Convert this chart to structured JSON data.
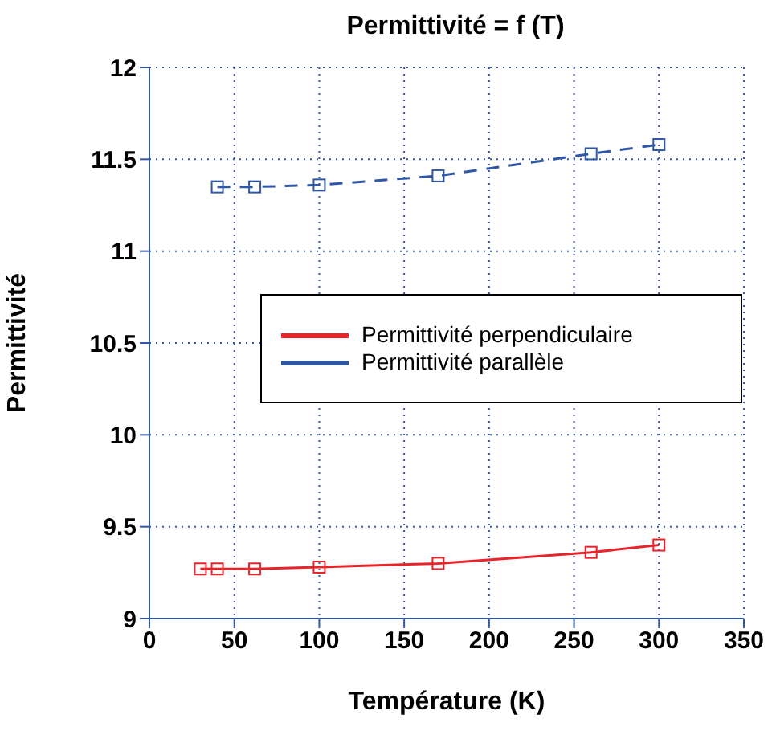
{
  "chart_data": {
    "type": "line",
    "title": "Permittivité = f (T)",
    "xlabel": "Température (K)",
    "ylabel": "Permittivité",
    "xlim": [
      0,
      350
    ],
    "xticks": [
      0,
      50,
      100,
      150,
      200,
      250,
      300,
      350
    ],
    "ylim": [
      9,
      12
    ],
    "yticks": [
      9,
      9.5,
      10,
      10.5,
      11,
      11.5,
      12
    ],
    "grid": true,
    "legend": "right",
    "marker": "square",
    "series": [
      {
        "name": "Permittivité perpendiculaire",
        "color": "#e8232a",
        "line_style": "solid",
        "x": [
          30,
          40,
          62,
          100,
          170,
          260,
          300
        ],
        "values": [
          9.27,
          9.27,
          9.27,
          9.28,
          9.3,
          9.36,
          9.4
        ]
      },
      {
        "name": "Permittivité parallèle",
        "color": "#2f57a5",
        "line_style": "dashed",
        "x": [
          40,
          62,
          100,
          170,
          260,
          300
        ],
        "values": [
          11.35,
          11.35,
          11.36,
          11.41,
          11.53,
          11.58
        ]
      }
    ]
  }
}
